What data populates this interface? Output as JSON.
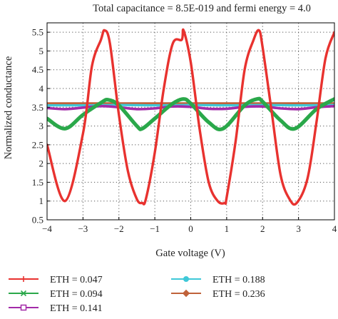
{
  "chart_data": {
    "type": "line",
    "title": "Total capacitance = 8.5E-019 and fermi energy = 4.0",
    "xlabel": "Gate voltage (V)",
    "ylabel": "Normalized conductance",
    "xlim": [
      -4,
      4
    ],
    "ylim": [
      0.5,
      5.75
    ],
    "x_ticks": [
      -4,
      -3,
      -2,
      -1,
      0,
      1,
      2,
      3,
      4
    ],
    "x_tick_labels": [
      "−4",
      "−3",
      "−2",
      "−1",
      "0",
      "1",
      "2",
      "3",
      "4"
    ],
    "y_ticks": [
      0.5,
      1,
      1.5,
      2,
      2.5,
      3,
      3.5,
      4,
      4.5,
      5,
      5.5
    ],
    "y_tick_labels": [
      "0.5",
      "1",
      "1.5",
      "2",
      "2.5",
      "3",
      "3.5",
      "4",
      "4.5",
      "5",
      "5.5"
    ],
    "grid": true,
    "legend_position": "bottom",
    "series": [
      {
        "name": "ETH = 0.047",
        "color": "#e8322f",
        "marker": "plus",
        "x": [
          -4.0,
          -3.5,
          -3.0,
          -2.75,
          -2.5,
          -2.4,
          -2.25,
          -2.0,
          -1.75,
          -1.5,
          -1.35,
          -1.25,
          -1.0,
          -0.75,
          -0.5,
          -0.25,
          -0.2,
          0.0,
          0.25,
          0.5,
          0.75,
          0.95,
          1.0,
          1.25,
          1.5,
          1.75,
          1.9,
          2.0,
          2.25,
          2.5,
          2.75,
          2.95,
          3.25,
          3.5,
          3.75,
          4.0
        ],
        "y": [
          2.5,
          1.0,
          2.8,
          4.6,
          5.3,
          5.55,
          5.2,
          3.3,
          1.8,
          1.05,
          0.95,
          1.05,
          2.3,
          4.0,
          5.2,
          5.3,
          5.55,
          4.7,
          2.9,
          1.5,
          1.0,
          0.95,
          1.1,
          2.6,
          4.5,
          5.3,
          5.55,
          5.1,
          3.4,
          1.7,
          1.05,
          0.95,
          1.6,
          3.1,
          4.8,
          5.5
        ]
      },
      {
        "name": "ETH = 0.094",
        "color": "#2aa84a",
        "marker": "x",
        "x": [
          -4.0,
          -3.5,
          -3.0,
          -2.5,
          -2.3,
          -2.0,
          -1.5,
          -1.35,
          -1.0,
          -0.5,
          -0.2,
          0.0,
          0.5,
          0.9,
          1.5,
          1.85,
          2.0,
          2.5,
          2.9,
          3.5,
          4.0
        ],
        "y": [
          3.2,
          2.93,
          3.3,
          3.62,
          3.7,
          3.55,
          3.0,
          2.93,
          3.2,
          3.6,
          3.72,
          3.6,
          3.1,
          2.93,
          3.55,
          3.72,
          3.65,
          3.15,
          2.93,
          3.45,
          3.72
        ]
      },
      {
        "name": "ETH = 0.141",
        "color": "#a32aa8",
        "marker": "square",
        "x": [
          -4.0,
          -3.5,
          -3.0,
          -2.5,
          -2.0,
          -1.5,
          -1.0,
          -0.5,
          0.0,
          0.5,
          1.0,
          1.5,
          2.0,
          2.5,
          3.0,
          3.5,
          4.0
        ],
        "y": [
          3.48,
          3.45,
          3.49,
          3.53,
          3.5,
          3.45,
          3.47,
          3.52,
          3.51,
          3.46,
          3.46,
          3.51,
          3.52,
          3.47,
          3.45,
          3.5,
          3.53
        ]
      },
      {
        "name": "ETH = 0.188",
        "color": "#3fc8d8",
        "marker": "circle",
        "x": [
          -4.0,
          -3.0,
          -2.0,
          -1.0,
          0.0,
          1.0,
          2.0,
          3.0,
          4.0
        ],
        "y": [
          3.55,
          3.55,
          3.56,
          3.55,
          3.56,
          3.55,
          3.56,
          3.55,
          3.56
        ]
      },
      {
        "name": "ETH = 0.236",
        "color": "#c0623a",
        "marker": "diamond",
        "x": [
          -4.0,
          -3.0,
          -2.0,
          -1.0,
          0.0,
          1.0,
          2.0,
          3.0,
          4.0
        ],
        "y": [
          3.6,
          3.6,
          3.6,
          3.6,
          3.6,
          3.6,
          3.6,
          3.6,
          3.6
        ]
      }
    ]
  }
}
